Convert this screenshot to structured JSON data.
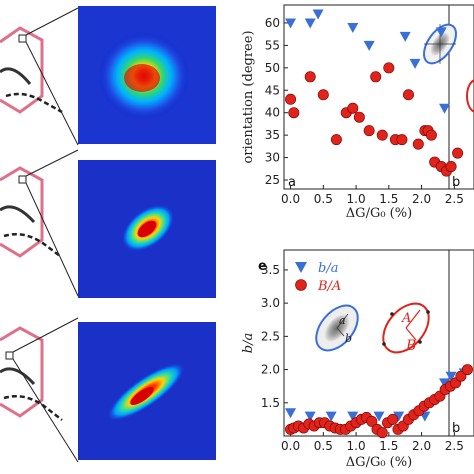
{
  "panel_letters": {
    "a": "a",
    "b": "b",
    "e": "e"
  },
  "chart_data": [
    {
      "type": "scatter",
      "ylabel": "orientation (degree)",
      "xlabel": "ΔG/G₀ (%)",
      "xlim": [
        -0.1,
        2.8
      ],
      "ylim": [
        23,
        64
      ],
      "x_ticks": [
        "0.0",
        "0.5",
        "1.0",
        "1.5",
        "2.0",
        "2.5"
      ],
      "y_ticks": [
        "25",
        "30",
        "35",
        "40",
        "45",
        "50",
        "55",
        "60"
      ],
      "grid": false,
      "colors": {
        "triangles": "#3a6fd8",
        "circles": "#e0241b"
      },
      "series": [
        {
          "marker": "triangle",
          "x": [
            0.0,
            0.3,
            0.42,
            0.95,
            1.2,
            1.75,
            1.9,
            2.3,
            2.35
          ],
          "y": [
            60,
            60,
            62,
            59,
            55,
            57,
            51,
            58,
            41
          ]
        },
        {
          "marker": "circle",
          "x": [
            0.0,
            0.05,
            0.3,
            0.5,
            0.7,
            0.85,
            0.95,
            1.05,
            1.2,
            1.3,
            1.4,
            1.5,
            1.6,
            1.7,
            1.8,
            1.95,
            2.05,
            2.1,
            2.15,
            2.2,
            2.3,
            2.38,
            2.45,
            2.55
          ],
          "y": [
            43,
            40,
            48,
            44,
            34,
            40,
            41,
            39,
            36,
            48,
            35,
            50,
            34,
            34,
            44,
            33,
            36,
            36,
            35,
            29,
            28,
            27,
            28,
            31
          ]
        }
      ]
    },
    {
      "type": "scatter",
      "ylabel": "b/a",
      "xlabel": "ΔG/G₀ (%)",
      "xlim": [
        -0.1,
        2.8
      ],
      "ylim": [
        1.0,
        3.8
      ],
      "x_ticks": [
        "0.0",
        "0.5",
        "1.0",
        "1.5",
        "2.0",
        "2.5"
      ],
      "y_ticks": [
        "1.5",
        "2.0",
        "2.5",
        "3.0",
        "3.5"
      ],
      "grid": false,
      "legend": [
        {
          "label": "b/a",
          "marker": "triangle"
        },
        {
          "label": "B/A",
          "marker": "circle"
        }
      ],
      "legend_placement": "top-left",
      "series": [
        {
          "marker": "triangle",
          "x": [
            0.0,
            0.3,
            0.62,
            0.95,
            1.35,
            1.65,
            2.05,
            2.35,
            2.45,
            2.65
          ],
          "y": [
            1.35,
            1.3,
            1.3,
            1.3,
            1.3,
            1.3,
            1.3,
            1.8,
            1.9,
            1.95
          ]
        },
        {
          "marker": "circle",
          "x": [
            0.0,
            0.05,
            0.12,
            0.2,
            0.28,
            0.36,
            0.44,
            0.52,
            0.6,
            0.68,
            0.76,
            0.84,
            0.92,
            1.0,
            1.08,
            1.16,
            1.24,
            1.32,
            1.4,
            1.48,
            1.56,
            1.64,
            1.72,
            1.8,
            1.88,
            1.96,
            2.04,
            2.12,
            2.2,
            2.28,
            2.36,
            2.44,
            2.52,
            2.6,
            2.7
          ],
          "y": [
            1.1,
            1.12,
            1.15,
            1.12,
            1.18,
            1.15,
            1.2,
            1.2,
            1.15,
            1.12,
            1.1,
            1.1,
            1.15,
            1.2,
            1.25,
            1.28,
            1.22,
            1.1,
            1.05,
            1.2,
            1.25,
            1.1,
            1.15,
            1.25,
            1.32,
            1.38,
            1.45,
            1.5,
            1.55,
            1.6,
            1.7,
            1.75,
            1.8,
            1.9,
            2.0
          ]
        }
      ],
      "inset_labels": {
        "small_a": "a",
        "small_b": "b",
        "big_A": "A",
        "big_B": "B"
      }
    }
  ]
}
